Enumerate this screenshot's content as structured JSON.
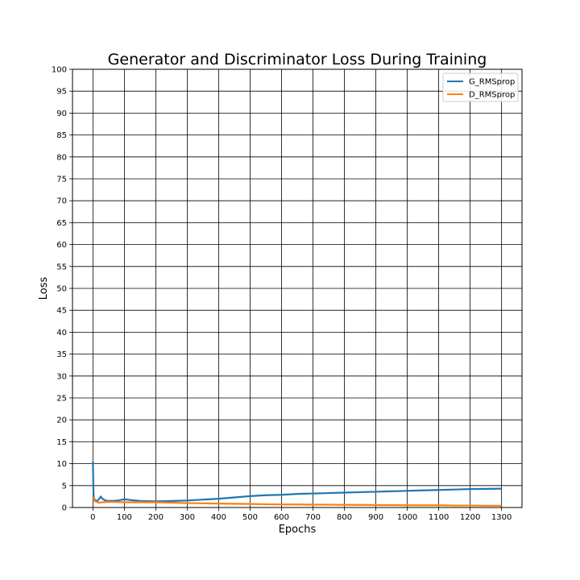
{
  "chart_data": {
    "type": "line",
    "title": "Generator and Discriminator Loss During Training",
    "xlabel": "Epochs",
    "ylabel": "Loss",
    "xlim": [
      -65,
      1365
    ],
    "ylim": [
      0,
      100
    ],
    "xticks": [
      0,
      100,
      200,
      300,
      400,
      500,
      600,
      700,
      800,
      900,
      1000,
      1100,
      1200,
      1300
    ],
    "yticks": [
      0,
      5,
      10,
      15,
      20,
      25,
      30,
      35,
      40,
      45,
      50,
      55,
      60,
      65,
      70,
      75,
      80,
      85,
      90,
      95,
      100
    ],
    "grid": true,
    "legend_position": "top-right",
    "series": [
      {
        "name": "G_RMSprop",
        "color": "#1f77b4",
        "x": [
          0,
          1,
          2,
          3,
          5,
          10,
          15,
          20,
          25,
          30,
          40,
          50,
          60,
          80,
          100,
          120,
          150,
          200,
          250,
          300,
          350,
          400,
          450,
          500,
          550,
          600,
          650,
          700,
          750,
          800,
          850,
          900,
          950,
          1000,
          1050,
          1100,
          1150,
          1200,
          1250,
          1300
        ],
        "y": [
          10.5,
          6.0,
          3.0,
          2.2,
          1.8,
          1.5,
          1.6,
          2.0,
          2.5,
          2.0,
          1.6,
          1.5,
          1.5,
          1.6,
          1.9,
          1.7,
          1.5,
          1.4,
          1.5,
          1.6,
          1.8,
          2.0,
          2.3,
          2.6,
          2.8,
          2.9,
          3.1,
          3.2,
          3.3,
          3.4,
          3.5,
          3.6,
          3.7,
          3.8,
          3.9,
          4.0,
          4.1,
          4.2,
          4.25,
          4.3
        ]
      },
      {
        "name": "D_RMSprop",
        "color": "#ff7f0e",
        "x": [
          0,
          2,
          5,
          10,
          20,
          30,
          50,
          100,
          150,
          200,
          250,
          300,
          350,
          400,
          450,
          500,
          550,
          600,
          650,
          700,
          750,
          800,
          850,
          900,
          950,
          1000,
          1050,
          1100,
          1150,
          1200,
          1250,
          1300
        ],
        "y": [
          2.5,
          2.0,
          1.6,
          1.3,
          1.1,
          1.2,
          1.3,
          1.2,
          1.2,
          1.2,
          1.1,
          1.0,
          0.95,
          0.9,
          0.85,
          0.8,
          0.75,
          0.7,
          0.7,
          0.65,
          0.65,
          0.6,
          0.6,
          0.55,
          0.55,
          0.5,
          0.5,
          0.5,
          0.45,
          0.45,
          0.4,
          0.4
        ]
      }
    ]
  }
}
